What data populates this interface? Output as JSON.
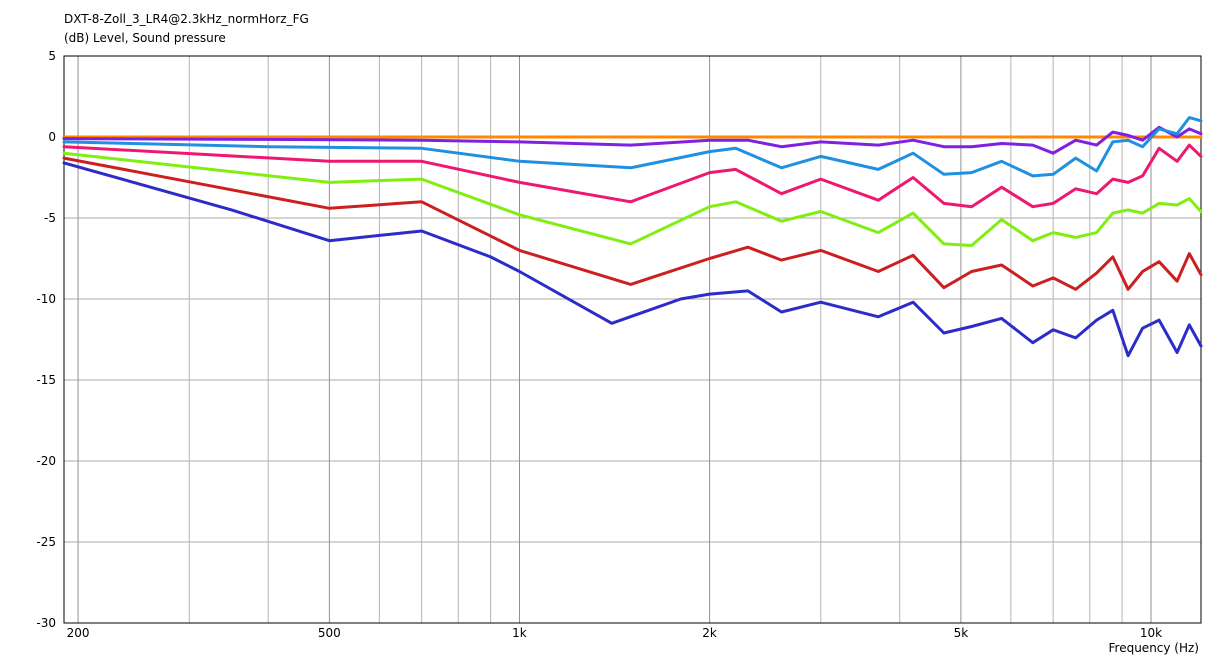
{
  "chart_data": {
    "type": "line",
    "title": "DXT-8-Zoll_3_LR4@2.3kHz_normHorz_FG",
    "ylabel": "(dB)  Level, Sound pressure",
    "xlabel": "Frequency  (Hz)",
    "x_scale": "log",
    "xlim": [
      190,
      12000
    ],
    "ylim": [
      -30,
      5
    ],
    "x_ticks": [
      200,
      500,
      1000,
      2000,
      5000,
      10000
    ],
    "x_tick_labels": [
      "200",
      "500",
      "1k",
      "2k",
      "5k",
      "10k"
    ],
    "y_ticks": [
      5,
      0,
      -5,
      -10,
      -15,
      -20,
      -25,
      -30
    ],
    "y_tick_labels": [
      "5",
      "0",
      "-5",
      "-10",
      "-15",
      "-20",
      "-25",
      "-30"
    ],
    "grid": true,
    "series": [
      {
        "color": "#ff8800",
        "x": [
          190,
          12000
        ],
        "values": [
          0,
          0
        ]
      },
      {
        "color": "#8020e0",
        "x": [
          190,
          400,
          700,
          1000,
          1500,
          2000,
          2300,
          2600,
          3000,
          3700,
          4200,
          4700,
          5200,
          5800,
          6500,
          7000,
          7600,
          8200,
          8700,
          9200,
          9700,
          10300,
          11000,
          11500,
          12000
        ],
        "values": [
          -0.1,
          -0.15,
          -0.2,
          -0.3,
          -0.5,
          -0.2,
          -0.2,
          -0.6,
          -0.3,
          -0.5,
          -0.2,
          -0.6,
          -0.6,
          -0.4,
          -0.5,
          -1.0,
          -0.2,
          -0.5,
          0.3,
          0.1,
          -0.2,
          0.6,
          0.0,
          0.5,
          0.2
        ]
      },
      {
        "color": "#2090e0",
        "x": [
          190,
          400,
          700,
          1000,
          1500,
          2000,
          2200,
          2600,
          3000,
          3700,
          4200,
          4700,
          5200,
          5800,
          6500,
          7000,
          7600,
          8200,
          8700,
          9200,
          9700,
          10300,
          11000,
          11500,
          12000
        ],
        "values": [
          -0.3,
          -0.6,
          -0.7,
          -1.5,
          -1.9,
          -0.9,
          -0.7,
          -1.9,
          -1.2,
          -2.0,
          -1.0,
          -2.3,
          -2.2,
          -1.5,
          -2.4,
          -2.3,
          -1.3,
          -2.1,
          -0.3,
          -0.2,
          -0.6,
          0.5,
          0.2,
          1.2,
          1.0
        ]
      },
      {
        "color": "#ee1870",
        "x": [
          190,
          500,
          700,
          1000,
          1500,
          2000,
          2200,
          2600,
          3000,
          3700,
          4200,
          4700,
          5200,
          5800,
          6500,
          7000,
          7600,
          8200,
          8700,
          9200,
          9700,
          10300,
          11000,
          11500,
          12000
        ],
        "values": [
          -0.6,
          -1.5,
          -1.5,
          -2.8,
          -4.0,
          -2.2,
          -2.0,
          -3.5,
          -2.6,
          -3.9,
          -2.5,
          -4.1,
          -4.3,
          -3.1,
          -4.3,
          -4.1,
          -3.2,
          -3.5,
          -2.6,
          -2.8,
          -2.4,
          -0.7,
          -1.5,
          -0.5,
          -1.2
        ]
      },
      {
        "color": "#80ee10",
        "x": [
          190,
          500,
          700,
          1000,
          1500,
          2000,
          2200,
          2600,
          3000,
          3700,
          4200,
          4700,
          5200,
          5800,
          6500,
          7000,
          7600,
          8200,
          8700,
          9200,
          9700,
          10300,
          11000,
          11500,
          12000
        ],
        "values": [
          -1.0,
          -2.8,
          -2.6,
          -4.8,
          -6.6,
          -4.3,
          -4.0,
          -5.2,
          -4.6,
          -5.9,
          -4.7,
          -6.6,
          -6.7,
          -5.1,
          -6.4,
          -5.9,
          -6.2,
          -5.9,
          -4.7,
          -4.5,
          -4.7,
          -4.1,
          -4.2,
          -3.8,
          -4.6
        ]
      },
      {
        "color": "#cc2020",
        "x": [
          190,
          500,
          700,
          1000,
          1500,
          2000,
          2300,
          2600,
          3000,
          3700,
          4200,
          4700,
          5200,
          5800,
          6500,
          7000,
          7600,
          8200,
          8700,
          9200,
          9700,
          10300,
          11000,
          11500,
          12000
        ],
        "values": [
          -1.3,
          -4.4,
          -4.0,
          -7.0,
          -9.1,
          -7.5,
          -6.8,
          -7.6,
          -7.0,
          -8.3,
          -7.3,
          -9.3,
          -8.3,
          -7.9,
          -9.2,
          -8.7,
          -9.4,
          -8.4,
          -7.4,
          -9.4,
          -8.3,
          -7.7,
          -8.9,
          -7.2,
          -8.5
        ]
      },
      {
        "color": "#2c2cc8",
        "x": [
          190,
          350,
          500,
          700,
          900,
          1000,
          1400,
          1800,
          2000,
          2300,
          2600,
          3000,
          3700,
          4200,
          4700,
          5200,
          5800,
          6500,
          7000,
          7600,
          8200,
          8700,
          9200,
          9700,
          10300,
          11000,
          11500,
          12000
        ],
        "values": [
          -1.6,
          -4.5,
          -6.4,
          -5.8,
          -7.4,
          -8.3,
          -11.5,
          -10.0,
          -9.7,
          -9.5,
          -10.8,
          -10.2,
          -11.1,
          -10.2,
          -12.1,
          -11.7,
          -11.2,
          -12.7,
          -11.9,
          -12.4,
          -11.3,
          -10.7,
          -13.5,
          -11.8,
          -11.3,
          -13.3,
          -11.6,
          -12.9
        ]
      }
    ]
  }
}
